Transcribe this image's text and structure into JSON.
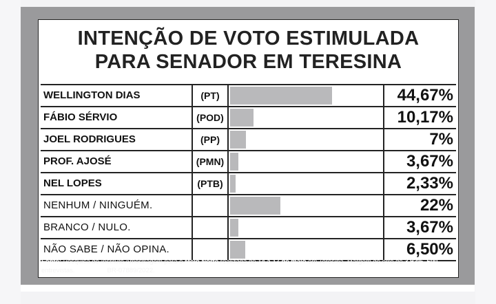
{
  "title": {
    "line1": "INTENÇÃO DE VOTO ESTIMULADA",
    "line2": "PARA SENADOR EM TERESINA"
  },
  "rows": [
    {
      "name": "WELLINGTON DIAS",
      "party": "(PT)",
      "value_label": "44,67%",
      "style": "bold"
    },
    {
      "name": "FÁBIO SÉRVIO",
      "party": "(POD)",
      "value_label": "10,17%",
      "style": "bold"
    },
    {
      "name": "JOEL RODRIGUES",
      "party": "(PP)",
      "value_label": "7%",
      "style": "bold"
    },
    {
      "name": "PROF. AJOSÉ",
      "party": "(PMN)",
      "value_label": "3,67%",
      "style": "bold"
    },
    {
      "name": "NEL LOPES",
      "party": "(PTB)",
      "value_label": "2,33%",
      "style": "bold"
    },
    {
      "name": "NENHUM / NINGUÉM.",
      "party": "",
      "value_label": "22%",
      "style": "light"
    },
    {
      "name": "BRANCO / NULO.",
      "party": "",
      "value_label": "3,67%",
      "style": "light"
    },
    {
      "name": "NÃO SABE / NÃO OPINA.",
      "party": "",
      "value_label": "6,50%",
      "style": "light"
    }
  ],
  "source": {
    "fonte_label": "Fonte:",
    "text1": " Pesquisa do Instituto Amostragem para o ",
    "outlet": "Meio Norte",
    "text2": " realizada de ",
    "dates": "14 a 17 de maio",
    "text3": " em Teresina. Margem de erro de ",
    "margin": "3,92%. 600",
    "text4": " entrevistas. ",
    "registro_label": "Registro:",
    "registro": " BR-07889/2022."
  },
  "colors": {
    "frame": "#9a9a9c",
    "bar": "#b9b9bb",
    "text": "#111111"
  },
  "chart_data": {
    "type": "bar",
    "title": "INTENÇÃO DE VOTO ESTIMULADA PARA SENADOR EM TERESINA",
    "categories": [
      "WELLINGTON DIAS",
      "FÁBIO SÉRVIO",
      "JOEL RODRIGUES",
      "PROF. AJOSÉ",
      "NEL LOPES",
      "NENHUM / NINGUÉM.",
      "BRANCO / NULO.",
      "NÃO SABE / NÃO OPINA."
    ],
    "values": [
      44.67,
      10.17,
      7,
      3.67,
      2.33,
      22,
      3.67,
      6.5
    ],
    "orientation": "horizontal",
    "xlim": [
      0,
      67
    ]
  }
}
